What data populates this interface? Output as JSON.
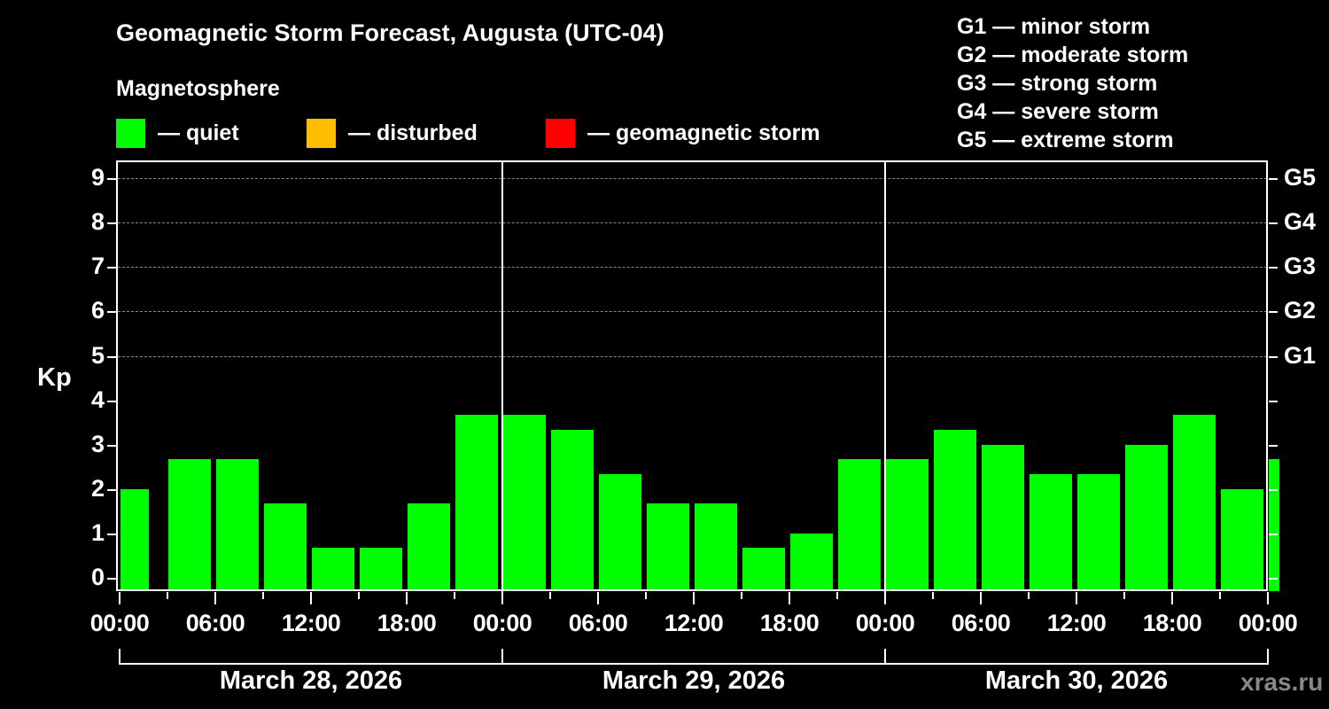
{
  "header": {
    "title": "Geomagnetic Storm Forecast, Augusta (UTC-04)",
    "subtitle": "Magnetosphere"
  },
  "legend": [
    {
      "label": "— quiet",
      "color": "#00ff00"
    },
    {
      "label": "— disturbed",
      "color": "#ffbf00"
    },
    {
      "label": "— geomagnetic storm",
      "color": "#ff0000"
    }
  ],
  "g_legend": [
    "G1 — minor storm",
    "G2 — moderate storm",
    "G3 — strong storm",
    "G4 — severe storm",
    "G5 — extreme storm"
  ],
  "credit": "xras.ru",
  "chart_data": {
    "type": "bar",
    "title": "Geomagnetic Storm Forecast, Augusta (UTC-04)",
    "xlabel": "",
    "ylabel": "Kp",
    "ylim": [
      0,
      9
    ],
    "yticks": [
      "0",
      "1",
      "2",
      "3",
      "4",
      "5",
      "6",
      "7",
      "8",
      "9"
    ],
    "right_axis_labels": [
      {
        "kp": 5,
        "label": "G1"
      },
      {
        "kp": 6,
        "label": "G2"
      },
      {
        "kp": 7,
        "label": "G3"
      },
      {
        "kp": 8,
        "label": "G4"
      },
      {
        "kp": 9,
        "label": "G5"
      }
    ],
    "grid": "dashed horizontal at Kp 5–9",
    "xtick_labels": [
      "00:00",
      "06:00",
      "12:00",
      "18:00",
      "00:00",
      "06:00",
      "12:00",
      "18:00",
      "00:00",
      "06:00",
      "12:00",
      "18:00",
      "00:00"
    ],
    "dates": [
      "March 28, 2026",
      "March 29, 2026",
      "March 30, 2026"
    ],
    "categories": [
      "Mar 28 00:00",
      "Mar 28 03:00",
      "Mar 28 06:00",
      "Mar 28 09:00",
      "Mar 28 12:00",
      "Mar 28 15:00",
      "Mar 28 18:00",
      "Mar 28 21:00",
      "Mar 29 00:00",
      "Mar 29 03:00",
      "Mar 29 06:00",
      "Mar 29 09:00",
      "Mar 29 12:00",
      "Mar 29 15:00",
      "Mar 29 18:00",
      "Mar 29 21:00",
      "Mar 30 00:00",
      "Mar 30 03:00",
      "Mar 30 06:00",
      "Mar 30 09:00",
      "Mar 30 12:00",
      "Mar 30 15:00",
      "Mar 30 18:00",
      "Mar 30 21:00",
      "Mar 31 00:00"
    ],
    "values": [
      2.0,
      2.67,
      2.67,
      1.67,
      0.67,
      0.67,
      1.67,
      3.67,
      3.67,
      3.33,
      2.33,
      1.67,
      1.67,
      0.67,
      1.0,
      2.67,
      2.67,
      3.33,
      3.0,
      2.33,
      2.33,
      3.0,
      3.67,
      2.0,
      2.67
    ],
    "bar_color": "#00ff00",
    "legend_position": "top"
  }
}
